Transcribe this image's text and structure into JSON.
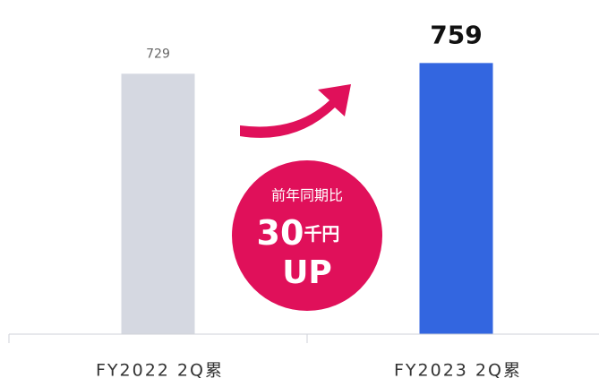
{
  "chart_data": {
    "type": "bar",
    "categories": [
      "FY2022 2Q累",
      "FY2023 2Q累"
    ],
    "values": [
      729,
      759
    ],
    "colors": [
      "#d5d8e1",
      "#3366e0"
    ],
    "ylim": [
      0,
      800
    ],
    "annotation": {
      "label": "前年同期比",
      "value": 30,
      "unit": "千円",
      "suffix": "UP"
    }
  }
}
